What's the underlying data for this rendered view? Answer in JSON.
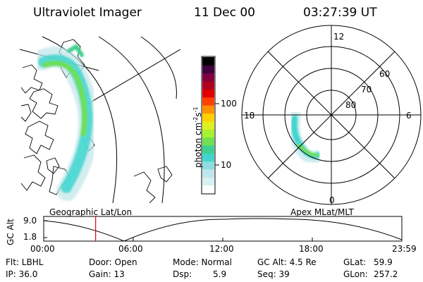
{
  "header": {
    "instrument": "Ultraviolet Imager",
    "date": "11 Dec 00",
    "time": "03:27:39 UT"
  },
  "panels": {
    "left_label": "Geographic Lat/Lon",
    "right_label": "Apex MLat/MLT"
  },
  "colorbar": {
    "unit_main": "photon cm",
    "unit_exp1": "-2",
    "unit_mid": "s",
    "unit_exp2": "-1",
    "ticks": [
      "100",
      "10"
    ],
    "colors": [
      "#ffffff",
      "#d8f0f2",
      "#bfe6ea",
      "#8fdde0",
      "#3fd6d0",
      "#40d090",
      "#70e050",
      "#a8f030",
      "#e0f020",
      "#ffd000",
      "#ff9000",
      "#ff4000",
      "#e00000",
      "#b00020",
      "#800040",
      "#400040",
      "#000000"
    ]
  },
  "polar": {
    "mlt_labels": [
      "12",
      "18",
      "6",
      "0"
    ],
    "lat_labels": [
      "60",
      "70",
      "80"
    ]
  },
  "timeline": {
    "ylabel": "GC Alt",
    "ytick_top": "9.0",
    "ytick_bottom": "1.8",
    "xticks": [
      "00:00",
      "06:00",
      "12:00",
      "18:00",
      "23:59"
    ],
    "current_time_fraction": 0.145
  },
  "info": {
    "flt": "Flt: LBHL",
    "ip": "IP: 36.0",
    "door": "Door: Open",
    "gain": "Gain: 13",
    "mode": "Mode: Normal",
    "dsp_label": "Dsp:",
    "dsp_value": "5.9",
    "gcalt": "GC Alt: 4.5 Re",
    "seq": "Seq: 39",
    "glat_label": "GLat:",
    "glat_value": "59.9",
    "glon_label": "GLon:",
    "glon_value": "257.2"
  }
}
